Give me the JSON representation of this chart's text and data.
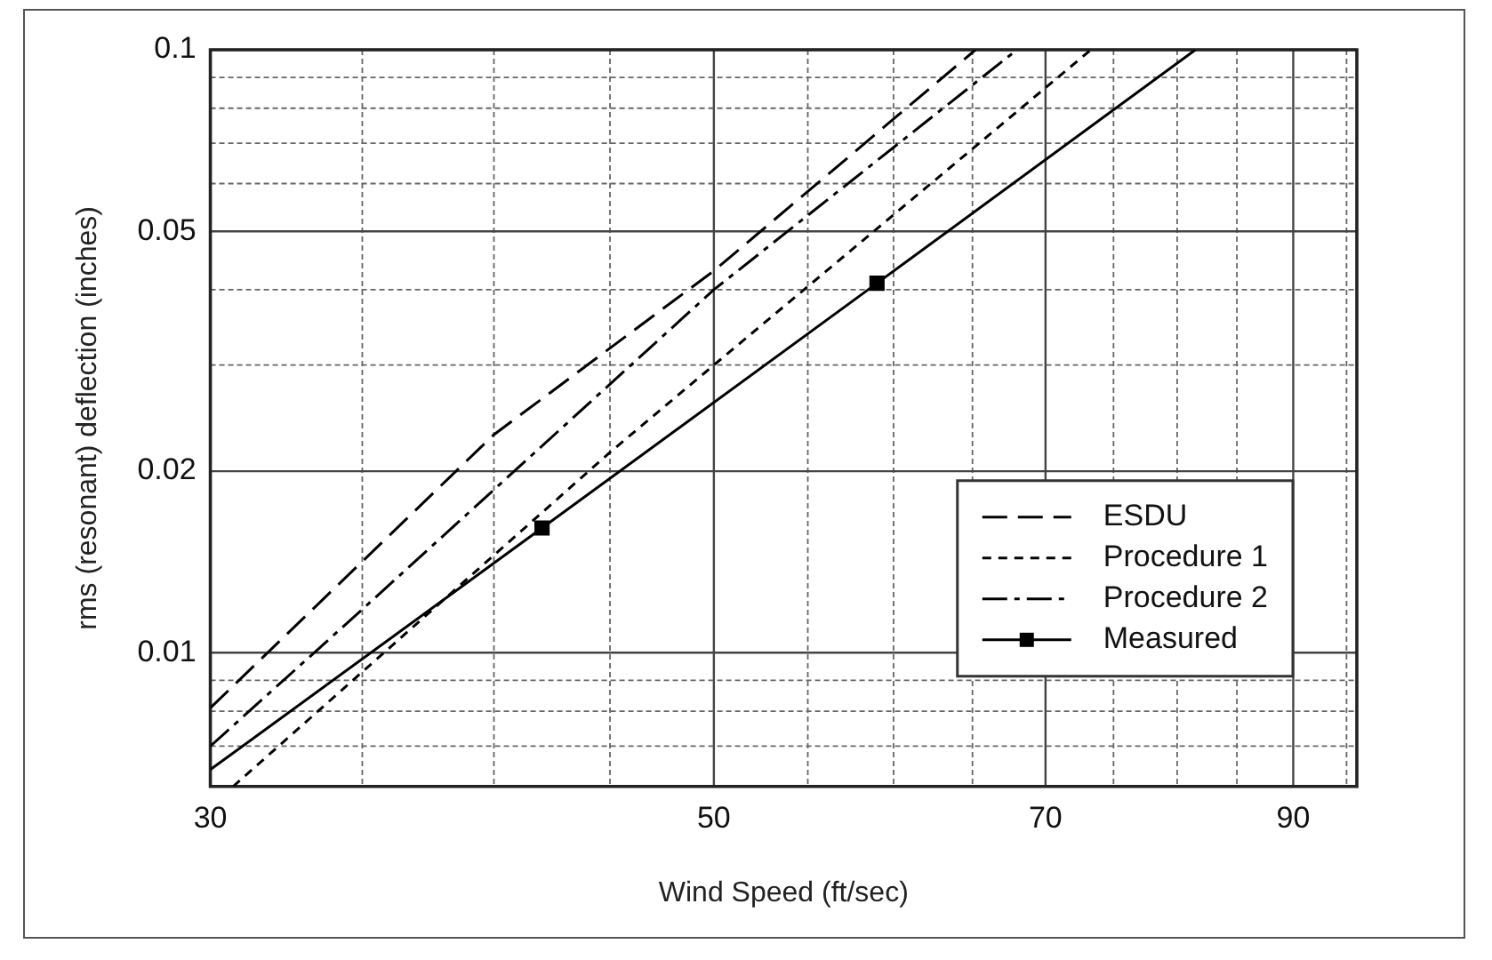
{
  "chart_data": {
    "type": "line",
    "xlabel": "Wind Speed (ft/sec)",
    "ylabel": "rms (resonant) deflection (inches)",
    "log": "xy",
    "grid": true,
    "legend": "bottom right",
    "xlim": [
      30,
      96
    ],
    "xticks": [
      30,
      {
        "value": 35,
        "label": null
      },
      {
        "value": 40,
        "label": null
      },
      {
        "value": 45,
        "label": null
      },
      50,
      {
        "value": 55,
        "label": null
      },
      {
        "value": 60,
        "label": null
      },
      {
        "value": 65,
        "label": null
      },
      70,
      {
        "value": 75,
        "label": null
      },
      {
        "value": 80,
        "label": null
      },
      {
        "value": 85,
        "label": null
      },
      90,
      {
        "value": 95,
        "label": null
      }
    ],
    "ylim": [
      0.006,
      0.1
    ],
    "yticks": [
      {
        "value": 0.007,
        "label": null
      },
      {
        "value": 0.008,
        "label": null
      },
      {
        "value": 0.009,
        "label": null
      },
      0.01,
      0.02,
      {
        "value": 0.03,
        "label": null
      },
      {
        "value": 0.04,
        "label": null
      },
      0.05,
      {
        "value": 0.06,
        "label": null
      },
      {
        "value": 0.07,
        "label": null
      },
      {
        "value": 0.08,
        "label": null
      },
      {
        "value": 0.09,
        "label": null
      },
      0.1
    ],
    "series": [
      {
        "name": "ESDU",
        "color": "#000000",
        "line_style": "dashed",
        "marker": "none",
        "x": [
          30,
          40,
          50,
          65.2
        ],
        "values": [
          0.0081,
          0.023,
          0.043,
          0.1
        ]
      },
      {
        "name": "Procedure 1",
        "color": "#000000",
        "line_style": "dotted",
        "marker": "none",
        "x": [
          30.7,
          45,
          50,
          73.3
        ],
        "values": [
          0.006,
          0.0215,
          0.03,
          0.1
        ]
      },
      {
        "name": "Procedure 2",
        "color": "#000000",
        "line_style": "dashdot",
        "marker": "none",
        "x": [
          30,
          35,
          50,
          68
        ],
        "values": [
          0.007,
          0.0118,
          0.04,
          0.1
        ]
      },
      {
        "name": "Measured",
        "color": "#000000",
        "line_style": "solid",
        "marker": "square",
        "x": [
          30,
          42,
          59,
          81.5
        ],
        "values": [
          0.0064,
          0.0161,
          0.041,
          0.1
        ]
      }
    ]
  }
}
